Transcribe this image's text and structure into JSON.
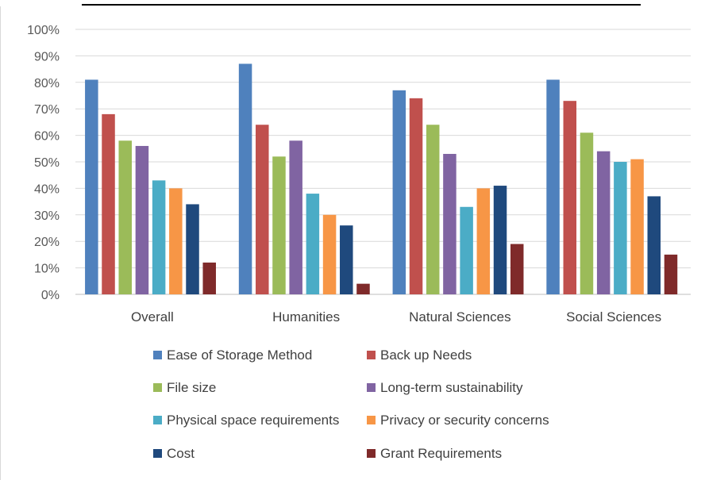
{
  "chart_data": {
    "type": "bar",
    "categories": [
      "Overall",
      "Humanities",
      "Natural Sciences",
      "Social Sciences"
    ],
    "series": [
      {
        "name": "Ease of Storage Method",
        "color": "#4f81bd",
        "values": [
          81,
          87,
          77,
          81
        ]
      },
      {
        "name": "Back up Needs",
        "color": "#c0504d",
        "values": [
          68,
          64,
          74,
          73
        ]
      },
      {
        "name": "File size",
        "color": "#9bbb59",
        "values": [
          58,
          52,
          64,
          61
        ]
      },
      {
        "name": "Long-term sustainability",
        "color": "#8064a2",
        "values": [
          56,
          58,
          53,
          54
        ]
      },
      {
        "name": "Physical space requirements",
        "color": "#4bacc6",
        "values": [
          43,
          38,
          33,
          50
        ]
      },
      {
        "name": "Privacy or security concerns",
        "color": "#f79646",
        "values": [
          40,
          30,
          40,
          51
        ]
      },
      {
        "name": "Cost",
        "color": "#1f497d",
        "values": [
          34,
          26,
          41,
          37
        ]
      },
      {
        "name": "Grant Requirements",
        "color": "#7f2a2a",
        "values": [
          12,
          4,
          19,
          15
        ]
      }
    ],
    "y_ticks": [
      "0%",
      "10%",
      "20%",
      "30%",
      "40%",
      "50%",
      "60%",
      "70%",
      "80%",
      "90%",
      "100%"
    ],
    "ylim": [
      0,
      100
    ],
    "grid": true,
    "legend": "bottom"
  }
}
